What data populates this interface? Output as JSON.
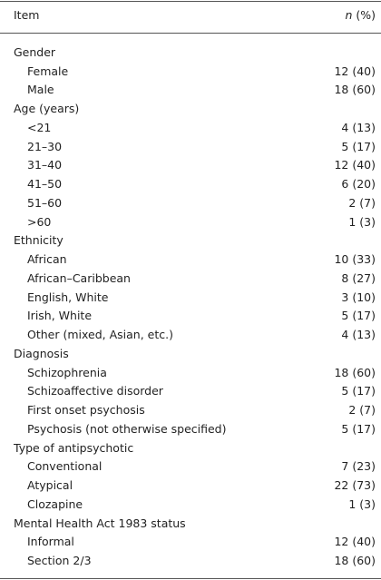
{
  "header": {
    "item": "Item",
    "value": "n (%)"
  },
  "sections": [
    {
      "title": "Gender",
      "rows": [
        {
          "label": "Female",
          "value": "12 (40)"
        },
        {
          "label": "Male",
          "value": "18 (60)"
        }
      ]
    },
    {
      "title": "Age (years)",
      "rows": [
        {
          "label": "<21",
          "value": "4 (13)"
        },
        {
          "label": "21–30",
          "value": "5 (17)"
        },
        {
          "label": "31–40",
          "value": "12 (40)"
        },
        {
          "label": "41–50",
          "value": "6 (20)"
        },
        {
          "label": "51–60",
          "value": "2 (7)"
        },
        {
          "label": ">60",
          "value": "1 (3)"
        }
      ]
    },
    {
      "title": "Ethnicity",
      "rows": [
        {
          "label": "African",
          "value": "10 (33)"
        },
        {
          "label": "African–Caribbean",
          "value": "8 (27)"
        },
        {
          "label": "English, White",
          "value": "3 (10)"
        },
        {
          "label": "Irish, White",
          "value": "5 (17)"
        },
        {
          "label": "Other (mixed, Asian, etc.)",
          "value": "4 (13)"
        }
      ]
    },
    {
      "title": "Diagnosis",
      "rows": [
        {
          "label": "Schizophrenia",
          "value": "18 (60)"
        },
        {
          "label": "Schizoaffective disorder",
          "value": "5 (17)"
        },
        {
          "label": "First onset psychosis",
          "value": "2 (7)"
        },
        {
          "label": "Psychosis (not otherwise specified)",
          "value": "5 (17)"
        }
      ]
    },
    {
      "title": "Type of antipsychotic",
      "rows": [
        {
          "label": "Conventional",
          "value": "7 (23)"
        },
        {
          "label": "Atypical",
          "value": "22 (73)"
        },
        {
          "label": "Clozapine",
          "value": "1 (3)"
        }
      ]
    },
    {
      "title": "Mental Health Act 1983 status",
      "rows": [
        {
          "label": "Informal",
          "value": "12 (40)"
        },
        {
          "label": "Section 2/3",
          "value": "18 (60)"
        }
      ]
    }
  ]
}
